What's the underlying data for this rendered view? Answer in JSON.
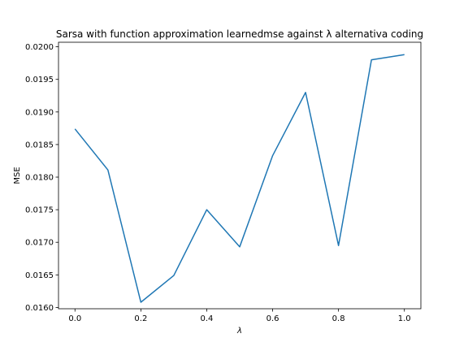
{
  "colors": {
    "line": "#1f77b4",
    "axes": "#000000",
    "background": "#ffffff"
  },
  "chart_data": {
    "type": "line",
    "title": "Sarsa with function approximation learnedmse against λ alternativa coding",
    "xlabel": "λ",
    "ylabel": "MSE",
    "xlim": [
      -0.05,
      1.05
    ],
    "ylim": [
      0.01598,
      0.02007
    ],
    "x_ticks": [
      0.0,
      0.2,
      0.4,
      0.6,
      0.8,
      1.0
    ],
    "x_tick_labels": [
      "0.0",
      "0.2",
      "0.4",
      "0.6",
      "0.8",
      "1.0"
    ],
    "y_ticks": [
      0.016,
      0.0165,
      0.017,
      0.0175,
      0.018,
      0.0185,
      0.019,
      0.0195,
      0.02
    ],
    "y_tick_labels": [
      "0.0160",
      "0.0165",
      "0.0170",
      "0.0175",
      "0.0180",
      "0.0185",
      "0.0190",
      "0.0195",
      "0.0200"
    ],
    "grid": false,
    "series": [
      {
        "x": [
          0.0,
          0.1,
          0.2,
          0.3,
          0.4,
          0.5,
          0.6,
          0.7,
          0.8,
          0.9,
          1.0
        ],
        "values": [
          0.01874,
          0.01811,
          0.01608,
          0.01649,
          0.0175,
          0.01693,
          0.01833,
          0.0193,
          0.01695,
          0.0198,
          0.01988
        ]
      }
    ]
  }
}
